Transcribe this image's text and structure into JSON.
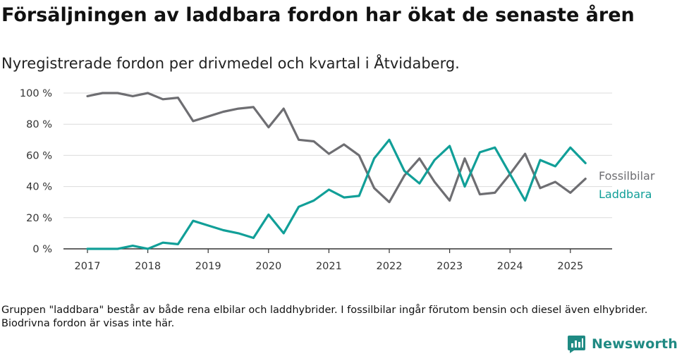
{
  "header": {
    "title": "Försäljningen av laddbara fordon har ökat de senaste åren",
    "subtitle": "Nyregistrerade fordon per drivmedel och kvartal i Åtvidaberg."
  },
  "footnote": "Gruppen \"laddbara\" består av både rena elbilar och laddhybrider. I fossilbilar ingår förutom bensin och diesel även elhybrider. Biodrivna fordon är visas inte här.",
  "brand": {
    "name": "Newsworthy",
    "color": "#1f8a83",
    "icon": "newsworthy-logo-icon"
  },
  "chart_data": {
    "type": "line",
    "x": [
      "2017-Q1",
      "2017-Q2",
      "2017-Q3",
      "2017-Q4",
      "2018-Q1",
      "2018-Q2",
      "2018-Q3",
      "2018-Q4",
      "2019-Q1",
      "2019-Q2",
      "2019-Q3",
      "2019-Q4",
      "2020-Q1",
      "2020-Q2",
      "2020-Q3",
      "2020-Q4",
      "2021-Q1",
      "2021-Q2",
      "2021-Q3",
      "2021-Q4",
      "2022-Q1",
      "2022-Q2",
      "2022-Q3",
      "2022-Q4",
      "2023-Q1",
      "2023-Q2",
      "2023-Q3",
      "2023-Q4",
      "2024-Q1",
      "2024-Q2",
      "2024-Q3",
      "2024-Q4",
      "2025-Q1",
      "2025-Q2"
    ],
    "x_tick_labels": [
      "2017",
      "2018",
      "2019",
      "2020",
      "2021",
      "2022",
      "2023",
      "2024",
      "2025"
    ],
    "y_tick_labels": [
      "0 %",
      "20 %",
      "40 %",
      "60 %",
      "80 %",
      "100 %"
    ],
    "ylim": [
      0,
      100
    ],
    "grid": "horizontal",
    "legend": "direct labels at line ends (right)",
    "series": [
      {
        "name": "Fossilbilar",
        "color": "#6e6e72",
        "values": [
          98,
          100,
          100,
          98,
          100,
          96,
          97,
          82,
          85,
          88,
          90,
          91,
          78,
          90,
          70,
          69,
          61,
          67,
          60,
          39,
          30,
          47,
          58,
          43,
          31,
          58,
          35,
          36,
          48,
          61,
          39,
          43,
          36,
          45
        ]
      },
      {
        "name": "Laddbara",
        "color": "#119f98",
        "values": [
          0,
          0,
          0,
          2,
          0,
          4,
          3,
          18,
          15,
          12,
          10,
          7,
          22,
          10,
          27,
          31,
          38,
          33,
          34,
          58,
          70,
          50,
          42,
          57,
          66,
          40,
          62,
          65,
          48,
          31,
          57,
          53,
          65,
          55
        ]
      }
    ]
  }
}
